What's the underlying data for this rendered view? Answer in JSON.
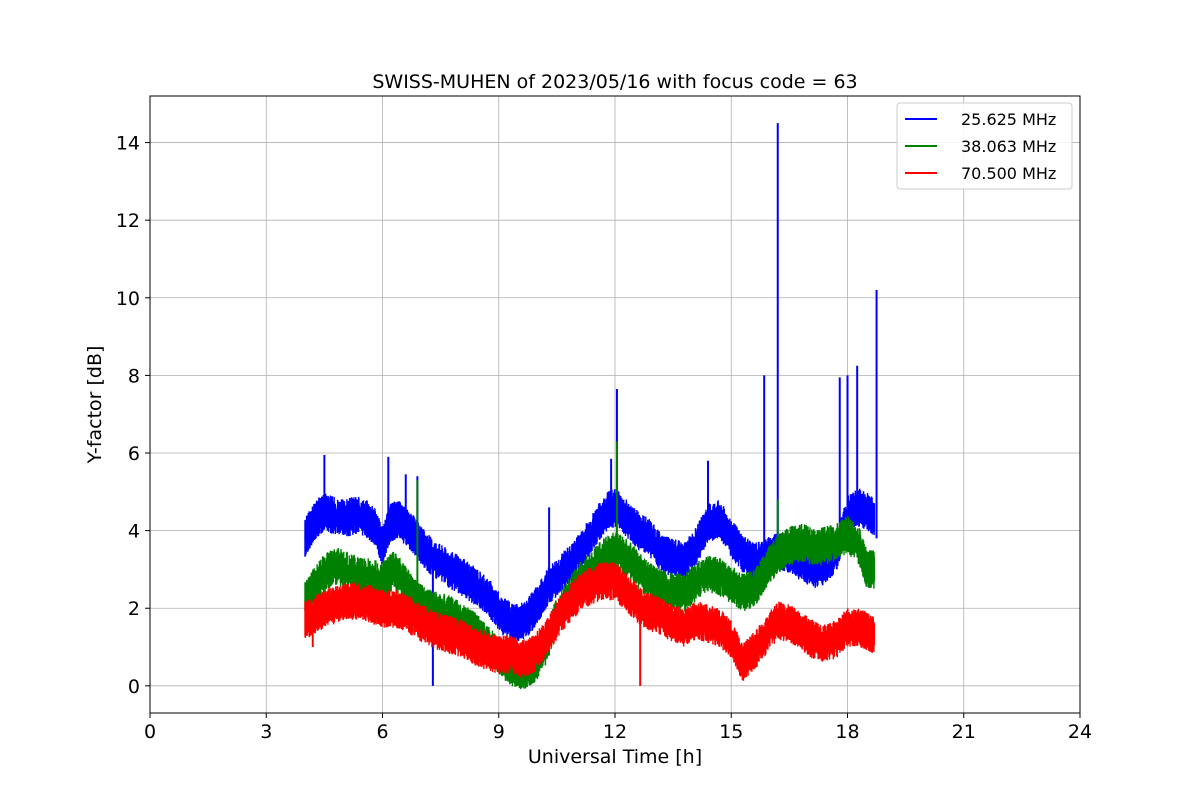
{
  "chart_data": {
    "type": "line",
    "title": "SWISS-MUHEN of 2023/05/16 with focus code = 63",
    "xlabel": "Universal Time [h]",
    "ylabel": "Y-factor [dB]",
    "xlim": [
      0,
      24
    ],
    "ylim": [
      -0.7,
      15.2
    ],
    "xticks": [
      0,
      3,
      6,
      9,
      12,
      15,
      18,
      21,
      24
    ],
    "yticks": [
      0,
      2,
      4,
      6,
      8,
      10,
      12,
      14
    ],
    "grid": true,
    "legend_position": "top-right",
    "series": [
      {
        "name": "25.625 MHz",
        "color": "#0000ff",
        "x": [
          4.0,
          4.1,
          4.3,
          4.5,
          4.7,
          5.0,
          5.3,
          5.6,
          5.8,
          6.0,
          6.2,
          6.4,
          6.6,
          6.8,
          7.0,
          7.3,
          7.6,
          7.9,
          8.2,
          8.5,
          8.8,
          9.1,
          9.4,
          9.7,
          10.0,
          10.3,
          10.6,
          10.9,
          11.2,
          11.5,
          11.8,
          12.0,
          12.3,
          12.6,
          12.9,
          13.2,
          13.5,
          13.8,
          14.1,
          14.4,
          14.7,
          15.0,
          15.3,
          15.6,
          15.9,
          16.2,
          16.5,
          16.8,
          17.1,
          17.4,
          17.7,
          18.0,
          18.3,
          18.5,
          18.7
        ],
        "y": [
          3.8,
          4.0,
          4.3,
          4.5,
          4.4,
          4.3,
          4.4,
          4.3,
          4.1,
          3.6,
          4.2,
          4.3,
          4.1,
          3.9,
          3.6,
          3.3,
          3.1,
          2.9,
          2.7,
          2.5,
          2.2,
          1.8,
          1.6,
          1.7,
          2.1,
          2.6,
          2.9,
          3.2,
          3.6,
          4.1,
          4.5,
          4.6,
          4.3,
          4.0,
          3.8,
          3.4,
          3.3,
          3.2,
          3.6,
          4.2,
          4.3,
          3.8,
          3.4,
          3.2,
          3.3,
          3.5,
          3.4,
          3.2,
          3.0,
          3.1,
          3.4,
          4.4,
          4.6,
          4.5,
          4.3
        ],
        "spikes": [
          [
            4.5,
            5.95
          ],
          [
            6.15,
            5.9
          ],
          [
            6.6,
            5.45
          ],
          [
            6.9,
            5.4
          ],
          [
            7.3,
            0.0
          ],
          [
            10.3,
            4.6
          ],
          [
            11.9,
            5.85
          ],
          [
            12.05,
            7.65
          ],
          [
            14.4,
            5.8
          ],
          [
            15.85,
            8.0
          ],
          [
            16.2,
            14.5
          ],
          [
            17.8,
            7.95
          ],
          [
            18.0,
            8.0
          ],
          [
            18.25,
            8.25
          ],
          [
            18.75,
            10.2
          ]
        ]
      },
      {
        "name": "38.063 MHz",
        "color": "#008000",
        "x": [
          4.0,
          4.2,
          4.5,
          4.8,
          5.2,
          5.6,
          6.0,
          6.3,
          6.6,
          6.9,
          7.2,
          7.5,
          7.8,
          8.1,
          8.4,
          8.7,
          9.0,
          9.3,
          9.6,
          9.9,
          10.2,
          10.5,
          10.8,
          11.1,
          11.4,
          11.7,
          12.0,
          12.3,
          12.6,
          12.9,
          13.2,
          13.5,
          13.8,
          14.1,
          14.4,
          14.7,
          15.0,
          15.3,
          15.6,
          15.9,
          16.2,
          16.5,
          16.8,
          17.1,
          17.4,
          17.7,
          18.0,
          18.3,
          18.5,
          18.7
        ],
        "y": [
          2.2,
          2.5,
          2.9,
          3.1,
          2.9,
          2.8,
          2.7,
          3.0,
          2.6,
          2.2,
          2.0,
          1.9,
          1.8,
          1.6,
          1.4,
          1.1,
          0.8,
          0.5,
          0.4,
          0.5,
          1.0,
          1.8,
          2.3,
          2.7,
          3.0,
          3.3,
          3.5,
          3.3,
          3.0,
          2.7,
          2.5,
          2.4,
          2.4,
          2.7,
          2.9,
          2.8,
          2.6,
          2.4,
          2.5,
          3.0,
          3.4,
          3.6,
          3.7,
          3.6,
          3.6,
          3.7,
          3.9,
          3.6,
          3.0,
          3.0
        ],
        "spikes": [
          [
            6.9,
            5.3
          ],
          [
            12.05,
            6.3
          ],
          [
            16.2,
            4.8
          ]
        ]
      },
      {
        "name": "70.500 MHz",
        "color": "#ff0000",
        "x": [
          4.0,
          4.2,
          4.5,
          4.8,
          5.1,
          5.4,
          5.7,
          6.0,
          6.3,
          6.6,
          6.9,
          7.2,
          7.5,
          7.8,
          8.1,
          8.4,
          8.7,
          9.0,
          9.3,
          9.6,
          9.9,
          10.2,
          10.5,
          10.8,
          11.1,
          11.4,
          11.7,
          12.0,
          12.3,
          12.6,
          12.9,
          13.2,
          13.5,
          13.8,
          14.1,
          14.4,
          14.7,
          15.0,
          15.3,
          15.6,
          15.9,
          16.2,
          16.5,
          16.8,
          17.1,
          17.4,
          17.7,
          18.0,
          18.3,
          18.5,
          18.7
        ],
        "y": [
          1.7,
          1.8,
          2.0,
          2.1,
          2.2,
          2.2,
          2.1,
          2.0,
          2.0,
          1.9,
          1.7,
          1.5,
          1.4,
          1.3,
          1.2,
          1.0,
          0.9,
          0.8,
          0.8,
          0.7,
          0.8,
          1.2,
          1.7,
          2.1,
          2.4,
          2.6,
          2.7,
          2.7,
          2.4,
          2.1,
          1.9,
          1.8,
          1.6,
          1.5,
          1.7,
          1.6,
          1.5,
          1.2,
          0.6,
          0.9,
          1.3,
          1.7,
          1.6,
          1.4,
          1.2,
          1.1,
          1.2,
          1.5,
          1.5,
          1.4,
          1.3
        ],
        "spikes": [
          [
            4.2,
            1.0
          ],
          [
            12.65,
            0.0
          ]
        ]
      }
    ]
  }
}
